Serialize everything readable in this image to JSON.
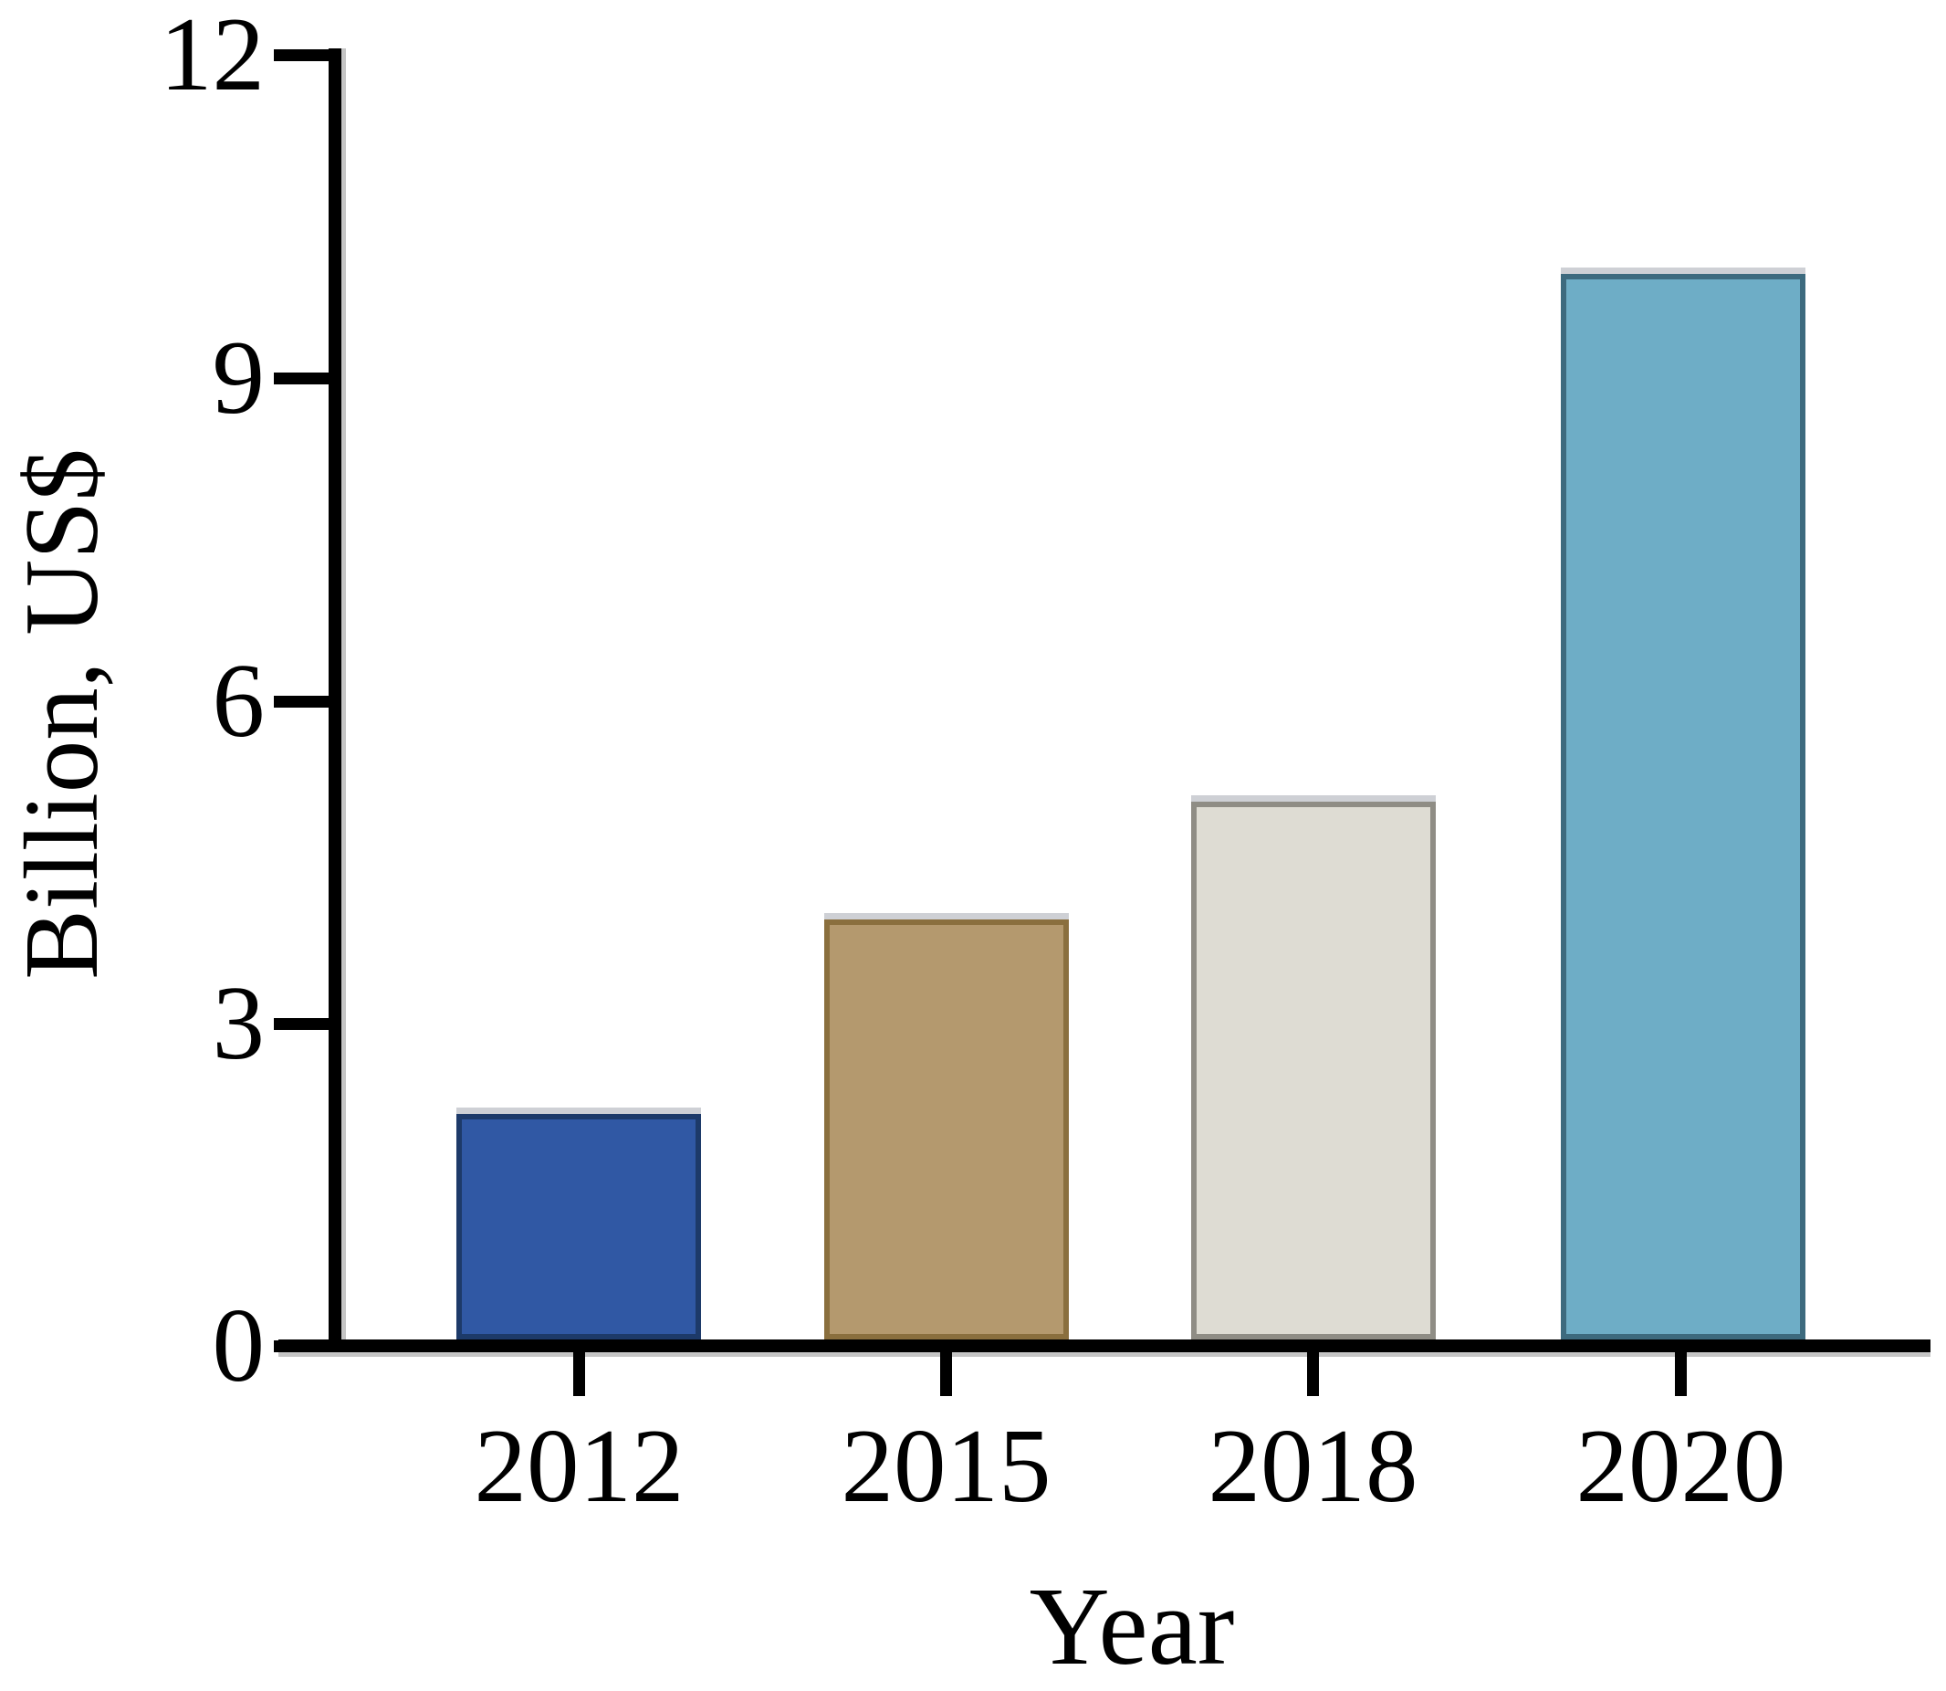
{
  "chart_data": {
    "type": "bar",
    "title": "",
    "categories": [
      "2012",
      "2015",
      "2018",
      "2020"
    ],
    "values": [
      2.1,
      3.9,
      5.0,
      9.9
    ],
    "xlabel": "Year",
    "ylabel": "Billion, US$",
    "ylim": [
      0,
      12
    ],
    "y_ticks": [
      0,
      3,
      6,
      9,
      12
    ],
    "grid": false,
    "legend": "none",
    "bar_colors": [
      "#3058a4",
      "#b4996e",
      "#dedcd3",
      "#6eadc6"
    ],
    "bar_border_colors": [
      "#1d3a69",
      "#8a6f3e",
      "#8f8d85",
      "#3d6a7e"
    ],
    "axis_color": "#000000",
    "background_color": "#ffffff"
  }
}
